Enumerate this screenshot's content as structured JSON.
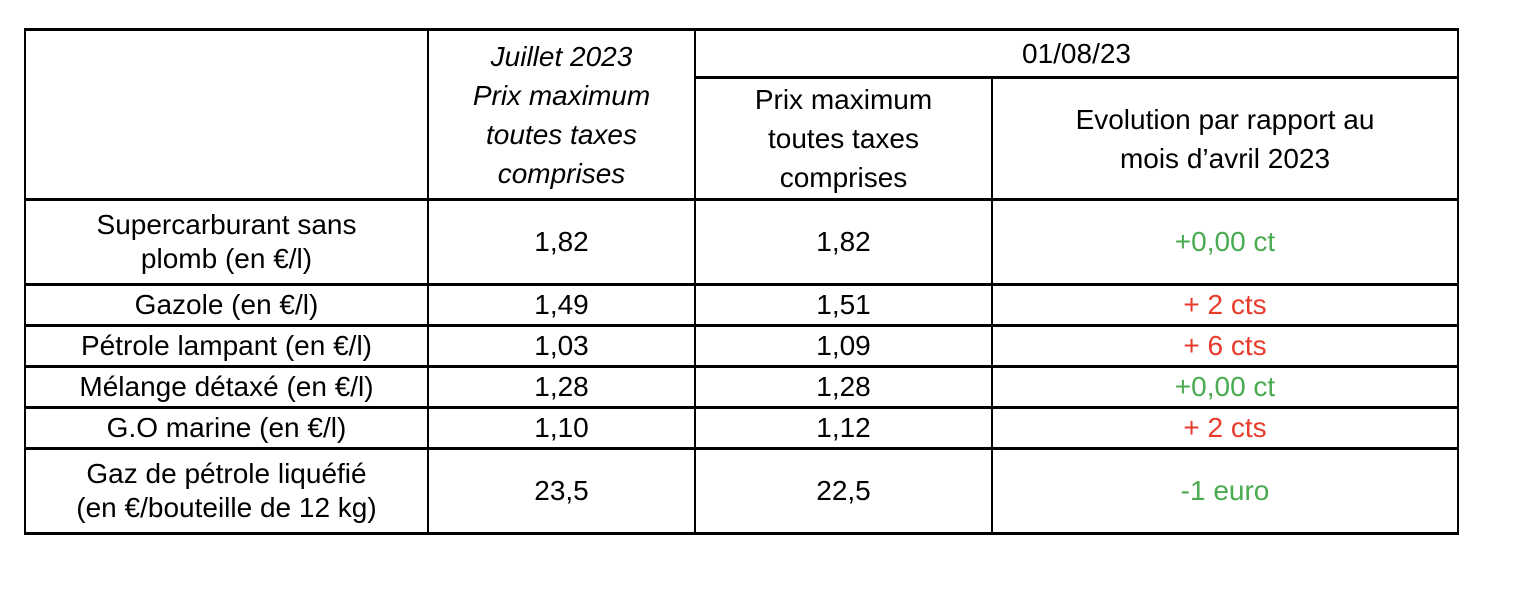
{
  "table": {
    "header": {
      "product_column": "",
      "july_column_lines": [
        "Juillet 2023",
        "Prix maximum",
        "toutes taxes",
        "comprises"
      ],
      "date_group": "01/08/23",
      "august_column_lines": [
        "Prix maximum",
        "toutes taxes",
        "comprises"
      ],
      "evolution_column_lines": [
        "Evolution par rapport au",
        "mois d’avril 2023"
      ]
    },
    "rows": [
      {
        "label_lines": [
          "Supercarburant sans",
          "plomb (en €/l)"
        ],
        "july": "1,82",
        "august": "1,82",
        "evolution": "+0,00 ct",
        "trend": "good"
      },
      {
        "label_lines": [
          "Gazole (en €/l)"
        ],
        "july": "1,49",
        "august": "1,51",
        "evolution": "+ 2 cts",
        "trend": "bad"
      },
      {
        "label_lines": [
          "Pétrole lampant (en €/l)"
        ],
        "july": "1,03",
        "august": "1,09",
        "evolution": "+ 6 cts",
        "trend": "bad"
      },
      {
        "label_lines": [
          "Mélange détaxé (en €/l)"
        ],
        "july": "1,28",
        "august": "1,28",
        "evolution": "+0,00 ct",
        "trend": "good"
      },
      {
        "label_lines": [
          "G.O marine (en €/l)"
        ],
        "july": "1,10",
        "august": "1,12",
        "evolution": "+ 2 cts",
        "trend": "bad"
      },
      {
        "label_lines": [
          "Gaz de pétrole liquéfié",
          "(en €/bouteille de 12 kg)"
        ],
        "july": "23,5",
        "august": "22,5",
        "evolution": "-1 euro",
        "trend": "good"
      }
    ],
    "colors": {
      "good": "#4aab51",
      "bad": "#e83b2c",
      "text": "#000000",
      "border": "#000000"
    }
  }
}
